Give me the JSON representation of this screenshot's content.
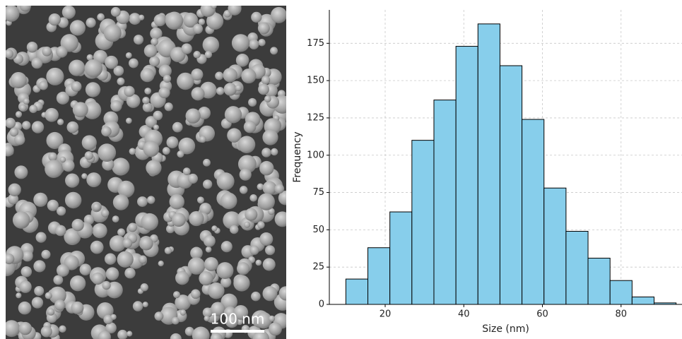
{
  "image": {
    "scale_bar_label": "100 nm"
  },
  "chart_data": {
    "type": "histogram",
    "xlabel": "Size (nm)",
    "ylabel": "Frequency",
    "bins": [
      10,
      15.6,
      21.2,
      26.8,
      32.4,
      38,
      43.6,
      49.2,
      54.8,
      60.4,
      66,
      71.6,
      77.2,
      82.8,
      88.4,
      94
    ],
    "values": [
      17,
      38,
      62,
      110,
      137,
      173,
      188,
      160,
      124,
      78,
      49,
      31,
      16,
      5,
      1
    ],
    "color": "#87ceeb",
    "edgecolor": "#000000",
    "xlim": [
      5.8,
      95.5
    ],
    "ylim": [
      0,
      197.4
    ],
    "xticks": [
      20,
      40,
      60,
      80
    ],
    "yticks": [
      0,
      25,
      50,
      75,
      100,
      125,
      150,
      175
    ],
    "grid": true
  }
}
